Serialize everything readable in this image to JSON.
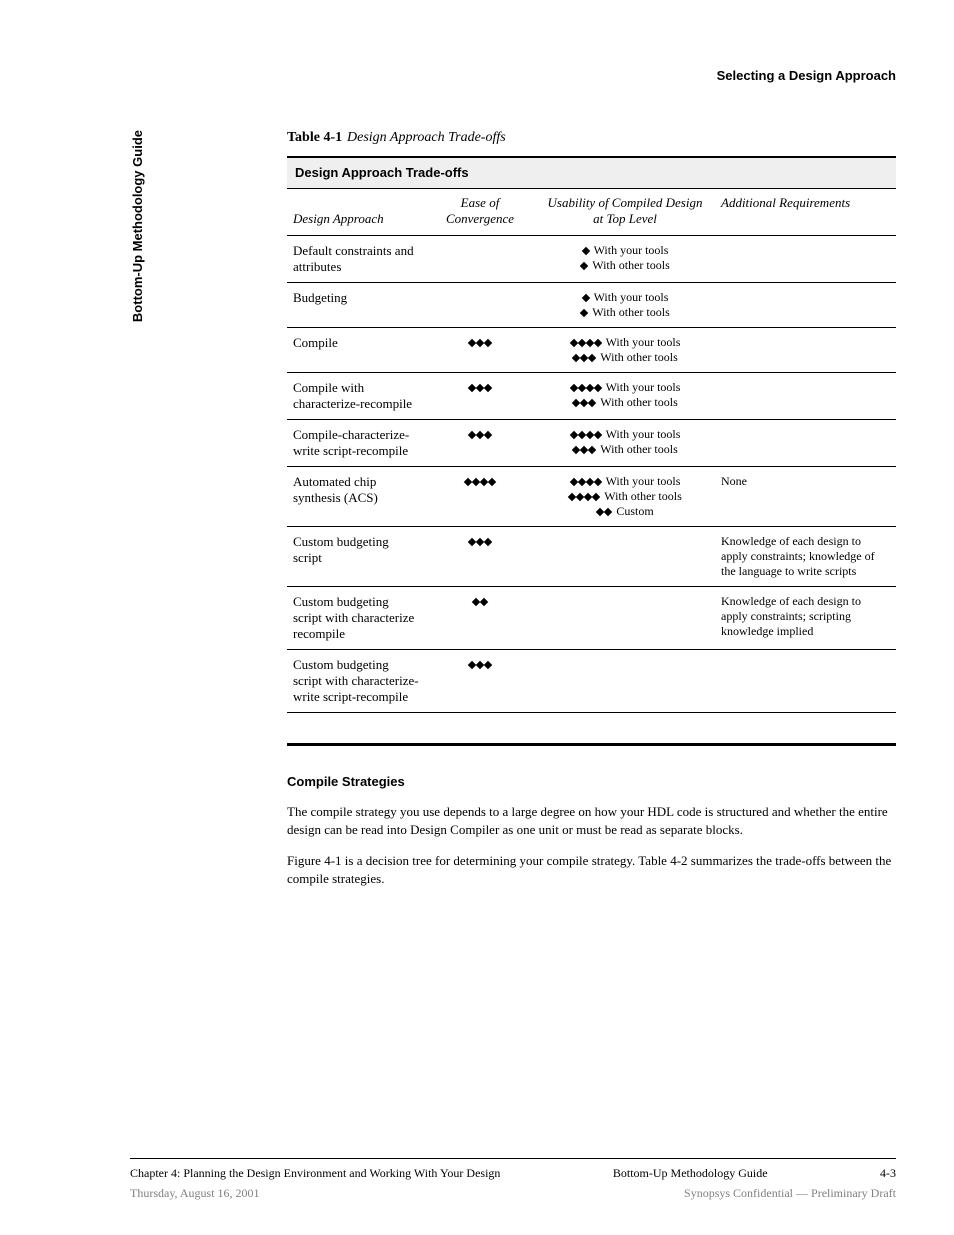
{
  "header": {
    "right": "Selecting a Design Approach",
    "left_vertical": "Bottom-Up Methodology Guide"
  },
  "caption": {
    "number": "Table 4-1",
    "title": "Design Approach Trade-offs"
  },
  "table": {
    "title": "Design Approach Trade-offs",
    "columns": [
      "Design Approach",
      "Ease of Convergence",
      "Usability of Compiled Design at Top Level",
      "Additional Requirements"
    ],
    "diamond_glyph": "◆",
    "rows": [
      {
        "design": "Default constraints and attributes",
        "ease": 0,
        "usability": [
          {
            "d": 1,
            "t": "With your tools"
          },
          {
            "d": 1,
            "t": "With other tools"
          }
        ],
        "req": ""
      },
      {
        "design": "Budgeting",
        "ease": 0,
        "usability": [
          {
            "d": 1,
            "t": "With your tools"
          },
          {
            "d": 1,
            "t": "With other tools"
          }
        ],
        "req": ""
      },
      {
        "design": "Compile",
        "ease": 3,
        "usability": [
          {
            "d": 4,
            "t": "With your tools"
          },
          {
            "d": 3,
            "t": "With other tools"
          }
        ],
        "req": ""
      },
      {
        "design": "Compile with characterize-recompile",
        "ease": 3,
        "usability": [
          {
            "d": 4,
            "t": "With your tools"
          },
          {
            "d": 3,
            "t": "With other tools"
          }
        ],
        "req": ""
      },
      {
        "design": "Compile-characterize- write script-recompile",
        "ease": 3,
        "usability": [
          {
            "d": 4,
            "t": "With your tools"
          },
          {
            "d": 3,
            "t": "With other tools"
          }
        ],
        "req": ""
      },
      {
        "design": "Automated chip synthesis (ACS)",
        "ease": 4,
        "usability": [
          {
            "d": 4,
            "t": "With your tools"
          },
          {
            "d": 4,
            "t": "With other tools"
          },
          {
            "d": 2,
            "t": "Custom"
          }
        ],
        "req": "None"
      },
      {
        "design": "Custom budgeting script",
        "ease": 3,
        "usability": [],
        "req": "Knowledge of each design to apply constraints; knowledge of the language to write scripts"
      },
      {
        "design": "Custom budgeting script with characterize recompile",
        "ease": 2,
        "usability": [],
        "req": "Knowledge of each design to apply constraints; scripting knowledge implied"
      },
      {
        "design": "Custom budgeting script with characterize- write script-recompile",
        "ease": 3,
        "usability": [],
        "req": ""
      },
      {
        "design": "",
        "ease": 0,
        "usability": [],
        "req": "",
        "blank": true
      }
    ]
  },
  "after": {
    "heading": "Compile Strategies",
    "p1": "The compile strategy you use depends to a large degree on how your HDL code is structured and whether the entire design can be read into Design Compiler as one unit or must be read as separate blocks.",
    "p2": "Figure 4-1 is a decision tree for determining your compile strategy. Table 4-2 summarizes the trade-offs between the compile strategies."
  },
  "footer": {
    "ref": "Chapter 4: Planning the Design Environment and Working With Your Design",
    "book": "Bottom-Up Methodology Guide",
    "page": "4-3",
    "grey_left": "Thursday, August 16, 2001",
    "grey_right": "Synopsys Confidential — Preliminary Draft"
  }
}
